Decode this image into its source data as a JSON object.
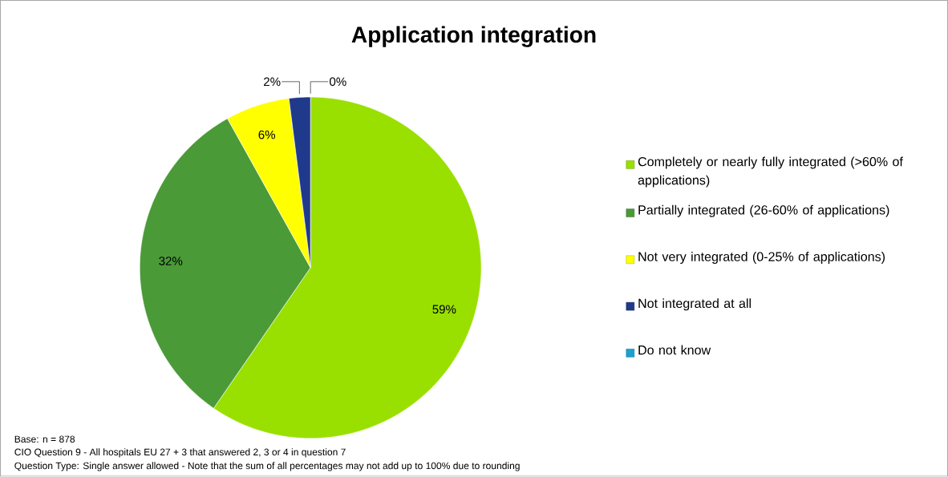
{
  "chart_data": {
    "type": "pie",
    "title": "Application integration",
    "categories": [
      "Completely or nearly fully integrated (>60% of applications)",
      "Partially integrated (26-60% of applications)",
      "Not very integrated (0-25% of applications)",
      "Not integrated at all",
      "Do not know"
    ],
    "values": [
      59,
      32,
      6,
      2,
      0
    ],
    "colors": [
      "#99e000",
      "#4a9a38",
      "#ffff00",
      "#1f3a8a",
      "#1ba0d0"
    ],
    "value_labels": [
      "59%",
      "32%",
      "6%",
      "2%",
      "0%"
    ],
    "legend": "right",
    "annotations": [
      "Base: n = 878",
      "CIO Question 9 - All hospitals EU 27 + 3 that answered 2, 3 or 4 in question 7",
      "Question Type: Single answer allowed - Note that the sum of all percentages may not add up to 100% due to rounding"
    ]
  }
}
